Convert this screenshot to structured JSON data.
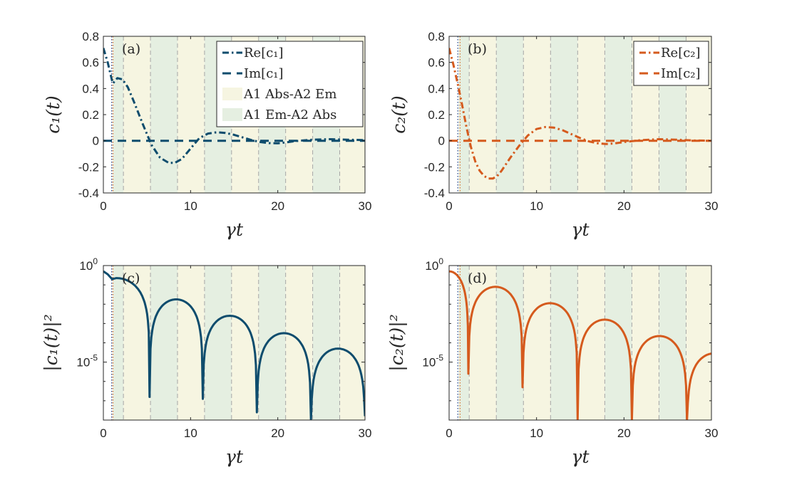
{
  "chart_data": [
    {
      "id": "a",
      "type": "line",
      "panel_label": "(a)",
      "yscale": "linear",
      "xlim": [
        0,
        30
      ],
      "ylim": [
        -0.4,
        0.8
      ],
      "xticks": [
        0,
        10,
        20,
        30
      ],
      "xtick_labels": [
        "0",
        "10",
        "20",
        "30"
      ],
      "yticks": [
        -0.4,
        -0.2,
        0,
        0.2,
        0.4,
        0.6,
        0.8
      ],
      "ytick_labels": [
        "-0.4",
        "-0.2",
        "0",
        "0.2",
        "0.4",
        "0.6",
        "0.8"
      ],
      "xlabel": "γt",
      "ylabel": "c₁(t)",
      "color": "#0e4c6d",
      "band_edges": [
        1.1,
        2.3,
        5.4,
        8.5,
        11.6,
        14.7,
        17.8,
        20.9,
        24.0,
        27.1,
        30
      ],
      "band_start": "em",
      "vlines": [
        {
          "x": 0.95,
          "color": "#2f4f8f"
        },
        {
          "x": 1.1,
          "color": "#d9732d"
        }
      ],
      "legend": [
        "Re[c₁]",
        "Im[c₁]",
        "A1 Abs-A2 Em",
        "A1 Em-A2 Abs"
      ],
      "series": [
        {
          "name": "Re[c₁]",
          "style": "dashdot",
          "x": [
            0,
            0.5,
            1.0,
            1.1,
            1.6,
            2.2,
            2.8,
            3.5,
            4.5,
            5.5,
            6.5,
            7.5,
            8.2,
            9.0,
            10,
            11,
            12,
            13,
            14,
            15,
            16,
            17,
            18,
            19,
            20,
            21,
            22,
            24,
            26,
            28,
            30
          ],
          "values": [
            0.71,
            0.6,
            0.46,
            0.44,
            0.48,
            0.47,
            0.41,
            0.3,
            0.13,
            -0.03,
            -0.13,
            -0.17,
            -0.17,
            -0.14,
            -0.06,
            0.02,
            0.055,
            0.065,
            0.06,
            0.045,
            0.025,
            0.005,
            -0.01,
            -0.018,
            -0.02,
            -0.012,
            -0.003,
            0.008,
            0.012,
            0.008,
            0.005
          ]
        },
        {
          "name": "Im[c₁]",
          "style": "dashed",
          "x": [
            0,
            30
          ],
          "values": [
            0.0,
            0.0
          ]
        }
      ]
    },
    {
      "id": "b",
      "type": "line",
      "panel_label": "(b)",
      "yscale": "linear",
      "xlim": [
        0,
        30
      ],
      "ylim": [
        -0.4,
        0.8
      ],
      "xticks": [
        0,
        10,
        20,
        30
      ],
      "xtick_labels": [
        "0",
        "10",
        "20",
        "30"
      ],
      "yticks": [
        -0.4,
        -0.2,
        0,
        0.2,
        0.4,
        0.6,
        0.8
      ],
      "ytick_labels": [
        "-0.4",
        "-0.2",
        "0",
        "0.2",
        "0.4",
        "0.6",
        "0.8"
      ],
      "xlabel": "γt",
      "ylabel": "c₂(t)",
      "color": "#d55a1d",
      "band_edges": [
        1.1,
        2.3,
        5.4,
        8.5,
        11.6,
        14.7,
        17.8,
        20.9,
        24.0,
        27.1,
        30
      ],
      "band_start": "em",
      "vlines": [
        {
          "x": 1.0,
          "color": "#2f4f8f"
        },
        {
          "x": 1.25,
          "color": "#d9732d"
        }
      ],
      "legend": [
        "Re[c₂]",
        "Im[c₂]"
      ],
      "series": [
        {
          "name": "Re[c₂]",
          "style": "dashdot",
          "x": [
            0,
            0.5,
            1.0,
            1.5,
            2.0,
            2.5,
            3.0,
            3.5,
            4.0,
            4.5,
            5.0,
            5.5,
            6.0,
            6.5,
            7.0,
            8.0,
            9.0,
            10,
            11,
            12,
            13,
            14,
            15,
            16,
            17,
            18,
            19,
            20,
            22,
            24,
            26,
            28,
            30
          ],
          "values": [
            0.71,
            0.58,
            0.43,
            0.27,
            0.1,
            -0.05,
            -0.16,
            -0.23,
            -0.27,
            -0.29,
            -0.29,
            -0.27,
            -0.23,
            -0.18,
            -0.13,
            -0.04,
            0.04,
            0.09,
            0.105,
            0.1,
            0.08,
            0.05,
            0.02,
            -0.005,
            -0.02,
            -0.025,
            -0.02,
            -0.01,
            0.005,
            0.012,
            0.008,
            0.002,
            0.0
          ]
        },
        {
          "name": "Im[c₂]",
          "style": "dashed",
          "x": [
            0,
            30
          ],
          "values": [
            0.0,
            0.0
          ]
        }
      ]
    },
    {
      "id": "c",
      "type": "line",
      "panel_label": "(c)",
      "yscale": "log",
      "xlim": [
        0,
        30
      ],
      "ylim_log10": [
        -8,
        0
      ],
      "xticks": [
        0,
        10,
        20,
        30
      ],
      "xtick_labels": [
        "0",
        "10",
        "20",
        "30"
      ],
      "ytick_exponents": [
        0,
        -5
      ],
      "ytick_base": "10",
      "xlabel": "γt",
      "ylabel": "|c₁(t)|²",
      "color": "#0e4c6d",
      "band_edges": [
        1.1,
        2.3,
        5.4,
        8.5,
        11.6,
        14.7,
        17.8,
        20.9,
        24.0,
        27.1,
        30
      ],
      "band_start": "em",
      "vlines": [
        {
          "x": 0.95,
          "color": "#2f4f8f"
        },
        {
          "x": 1.1,
          "color": "#d9732d"
        }
      ],
      "series": [
        {
          "name": "|c₁(t)|²",
          "style": "solid",
          "zeros": [
            5.3,
            11.4,
            17.6,
            23.8,
            30.0
          ],
          "peaks": [
            {
              "x": 0,
              "log10": -0.3
            },
            {
              "x": 1.0,
              "log10": -0.7
            },
            {
              "x": 1.5,
              "log10": -0.65
            },
            {
              "x": 7.8,
              "log10": -1.75
            },
            {
              "x": 14.0,
              "log10": -2.6
            },
            {
              "x": 20.1,
              "log10": -3.5
            },
            {
              "x": 26.4,
              "log10": -4.3
            }
          ],
          "dip_log10": [
            -6.8,
            -6.9,
            -7.6,
            -8.0,
            -7.8
          ]
        }
      ]
    },
    {
      "id": "d",
      "type": "line",
      "panel_label": "(d)",
      "yscale": "log",
      "xlim": [
        0,
        30
      ],
      "ylim_log10": [
        -8,
        0
      ],
      "xticks": [
        0,
        10,
        20,
        30
      ],
      "xtick_labels": [
        "0",
        "10",
        "20",
        "30"
      ],
      "ytick_exponents": [
        0,
        -5
      ],
      "ytick_base": "10",
      "xlabel": "γt",
      "ylabel": "|c₂(t)|²",
      "color": "#d55a1d",
      "band_edges": [
        1.1,
        2.3,
        5.4,
        8.5,
        11.6,
        14.7,
        17.8,
        20.9,
        24.0,
        27.1,
        30
      ],
      "band_start": "em",
      "vlines": [
        {
          "x": 1.0,
          "color": "#2f4f8f"
        },
        {
          "x": 1.25,
          "color": "#d9732d"
        }
      ],
      "series": [
        {
          "name": "|c₂(t)|²",
          "style": "solid",
          "zeros": [
            2.2,
            8.4,
            14.7,
            20.9,
            27.2
          ],
          "peaks": [
            {
              "x": 0,
              "log10": -0.3
            },
            {
              "x": 5.0,
              "log10": -1.1
            },
            {
              "x": 11.2,
              "log10": -1.95
            },
            {
              "x": 17.4,
              "log10": -2.8
            },
            {
              "x": 23.7,
              "log10": -3.65
            },
            {
              "x": 30.0,
              "log10": -4.55
            }
          ],
          "dip_log10": [
            -5.6,
            -6.3,
            -8.0,
            -8.0,
            -8.0
          ]
        }
      ]
    }
  ],
  "colors": {
    "abs_band": "#f6f5e1",
    "em_band": "#e5efe1",
    "edge_line": "#a6a6a6"
  }
}
